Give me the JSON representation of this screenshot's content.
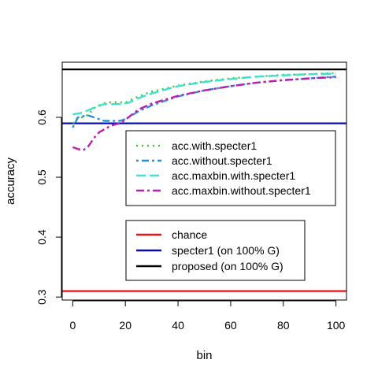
{
  "chart_data": {
    "type": "line",
    "xlabel": "bin",
    "ylabel": "accuracy",
    "xlim": [
      -4,
      104
    ],
    "ylim": [
      0.295,
      0.692
    ],
    "xticks": [
      0,
      20,
      40,
      60,
      80,
      100
    ],
    "yticks": [
      0.3,
      0.4,
      0.5,
      0.6
    ],
    "grid": false,
    "series": [
      {
        "name": "acc.with.specter1",
        "color": "#33cc33",
        "dash": "dotted",
        "x": [
          0,
          2,
          4,
          6,
          8,
          10,
          13,
          16,
          20,
          25,
          30,
          40,
          50,
          60,
          70,
          80,
          90,
          100
        ],
        "y": [
          0.59,
          0.6,
          0.6,
          0.605,
          0.615,
          0.62,
          0.625,
          0.625,
          0.625,
          0.635,
          0.643,
          0.653,
          0.66,
          0.665,
          0.668,
          0.671,
          0.672,
          0.674
        ]
      },
      {
        "name": "acc.without.specter1",
        "color": "#2e8bd6",
        "dash": "dashdot",
        "x": [
          0,
          2,
          4,
          6,
          8,
          10,
          12,
          15,
          18,
          20,
          25,
          30,
          40,
          50,
          60,
          70,
          80,
          90,
          100
        ],
        "y": [
          0.583,
          0.6,
          0.602,
          0.603,
          0.6,
          0.597,
          0.594,
          0.594,
          0.594,
          0.597,
          0.61,
          0.62,
          0.635,
          0.645,
          0.652,
          0.658,
          0.662,
          0.665,
          0.668
        ]
      },
      {
        "name": "acc.maxbin.with.specter1",
        "color": "#40e0d0",
        "dash": "longdash",
        "x": [
          0,
          3,
          6,
          9,
          12,
          15,
          18,
          21,
          25,
          30,
          40,
          50,
          60,
          70,
          80,
          90,
          100
        ],
        "y": [
          0.605,
          0.607,
          0.612,
          0.618,
          0.622,
          0.622,
          0.622,
          0.624,
          0.632,
          0.64,
          0.652,
          0.659,
          0.664,
          0.668,
          0.67,
          0.672,
          0.673
        ]
      },
      {
        "name": "acc.maxbin.without.specter1",
        "color": "#bb1eaf",
        "dash": "dashdot2",
        "x": [
          0,
          2,
          4,
          6,
          8,
          10,
          12,
          14,
          16,
          18,
          20,
          25,
          30,
          40,
          50,
          60,
          70,
          80,
          90,
          100
        ],
        "y": [
          0.55,
          0.547,
          0.545,
          0.552,
          0.565,
          0.575,
          0.58,
          0.585,
          0.588,
          0.59,
          0.596,
          0.613,
          0.623,
          0.636,
          0.645,
          0.652,
          0.658,
          0.662,
          0.665,
          0.667
        ]
      }
    ],
    "reference_lines": [
      {
        "name": "chance",
        "color": "#ee1111",
        "y": 0.31
      },
      {
        "name": "specter1 (on 100% G)",
        "color": "#0a0ab4",
        "y": 0.59
      },
      {
        "name": "proposed (on 100% G)",
        "color": "#000000",
        "y": 0.68
      }
    ],
    "legends": [
      {
        "placement": "center-right",
        "entries": [
          "acc.with.specter1",
          "acc.without.specter1",
          "acc.maxbin.with.specter1",
          "acc.maxbin.without.specter1"
        ]
      },
      {
        "placement": "bottom-center",
        "entries": [
          "chance",
          "specter1 (on 100% G)",
          "proposed (on 100% G)"
        ]
      }
    ]
  }
}
